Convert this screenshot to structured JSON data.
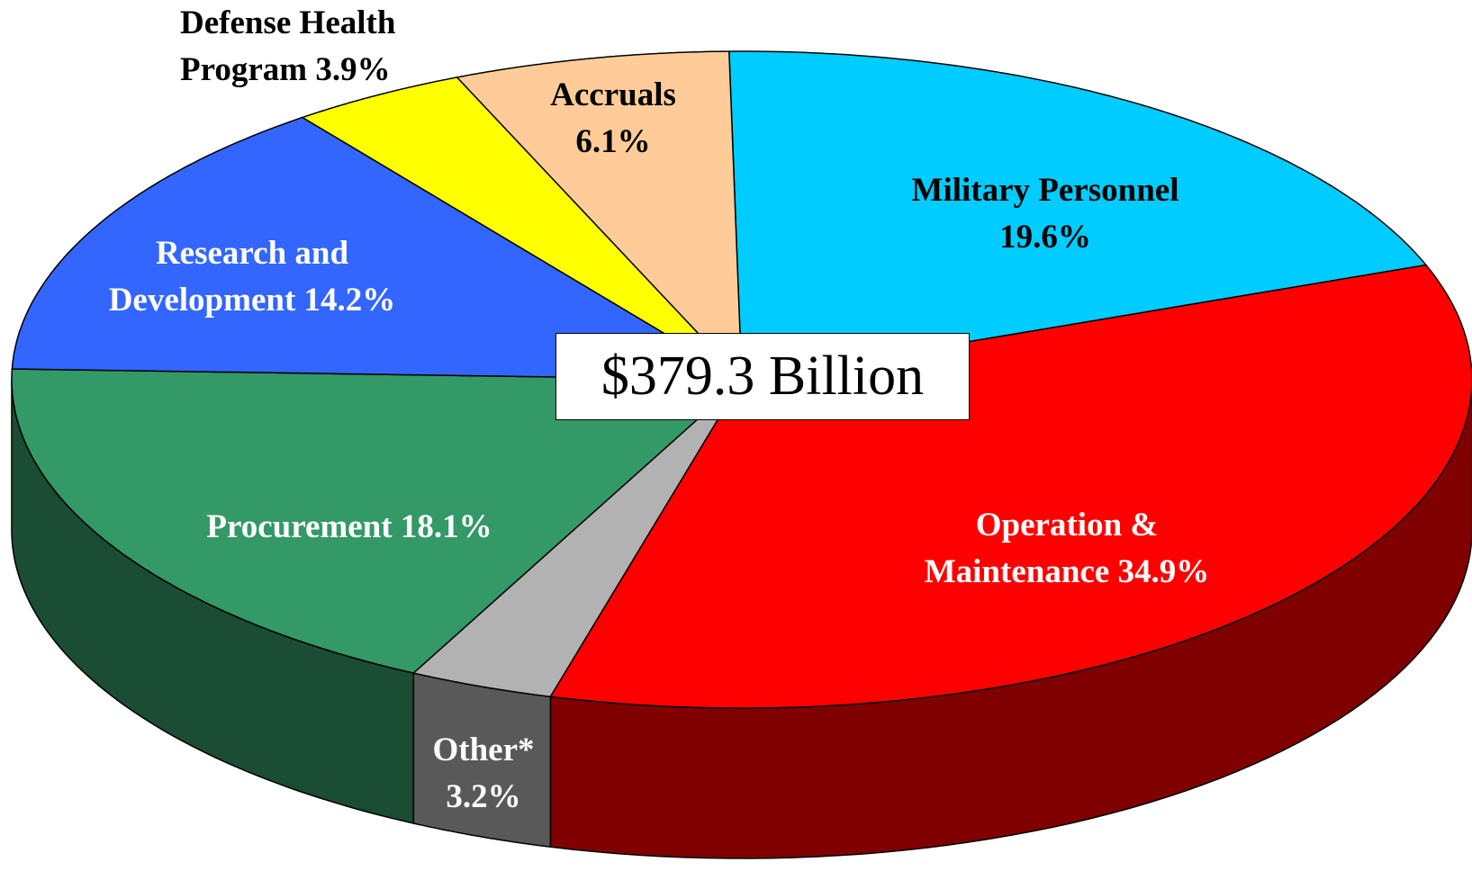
{
  "chart_data": {
    "type": "pie3d",
    "annotation": "$379.3 Billion",
    "categories": [
      "Military Personnel",
      "Operation & Maintenance",
      "Other*",
      "Procurement",
      "Research and Development",
      "Defense Health Program",
      "Accruals"
    ],
    "values": [
      19.6,
      34.9,
      3.2,
      18.1,
      14.2,
      3.9,
      6.1
    ],
    "value_labels": [
      "19.6%",
      "34.9%",
      "3.2%",
      "18.1%",
      "14.2%",
      "3.9%",
      "6.1%"
    ],
    "colors": [
      "#00ccff",
      "#ff0000",
      "#b2b2b2",
      "#339966",
      "#3366ff",
      "#ffff00",
      "#ffcc99"
    ]
  }
}
